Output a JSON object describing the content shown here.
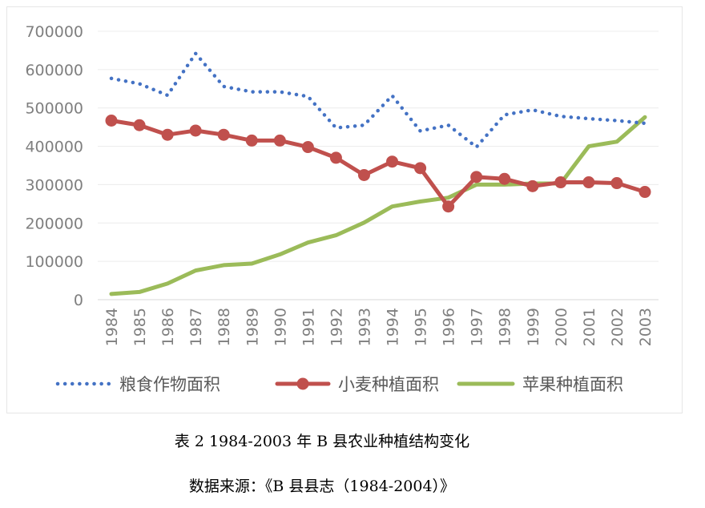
{
  "chart_data": {
    "type": "line",
    "categories": [
      "1984",
      "1985",
      "1986",
      "1987",
      "1988",
      "1989",
      "1990",
      "1991",
      "1992",
      "1993",
      "1994",
      "1995",
      "1996",
      "1997",
      "1998",
      "1999",
      "2000",
      "2001",
      "2002",
      "2003"
    ],
    "ylim": [
      0,
      700000
    ],
    "yticks": [
      "700000",
      "600000",
      "500000",
      "400000",
      "300000",
      "200000",
      "100000",
      "0"
    ],
    "ytick_values": [
      700000,
      600000,
      500000,
      400000,
      300000,
      200000,
      100000,
      0
    ],
    "grid": true,
    "legend_position": "bottom",
    "series": [
      {
        "name": "粮食作物面积",
        "style": "dotted",
        "color": "#4472c4",
        "values": [
          577000,
          563000,
          533000,
          642000,
          556000,
          542000,
          542000,
          530000,
          448000,
          455000,
          532000,
          440000,
          455000,
          398000,
          482000,
          495000,
          478000,
          472000,
          467000,
          460000
        ]
      },
      {
        "name": "小麦种植面积",
        "style": "marker",
        "color": "#c0504d",
        "values": [
          467000,
          455000,
          430000,
          441000,
          430000,
          415000,
          415000,
          398000,
          370000,
          325000,
          360000,
          343000,
          243000,
          320000,
          315000,
          296000,
          306000,
          306000,
          304000,
          281000
        ]
      },
      {
        "name": "苹果种植面积",
        "style": "solid",
        "color": "#9bbb59",
        "values": [
          15000,
          20000,
          42000,
          76000,
          90000,
          94000,
          118000,
          149000,
          168000,
          201000,
          243000,
          256000,
          266000,
          300000,
          300000,
          303000,
          303000,
          400000,
          412000,
          476000
        ]
      }
    ]
  },
  "caption": {
    "title": "表 2 1984-2003 年 B 县农业种植结构变化",
    "source": "数据来源：《B 县县志（1984-2004）》"
  }
}
